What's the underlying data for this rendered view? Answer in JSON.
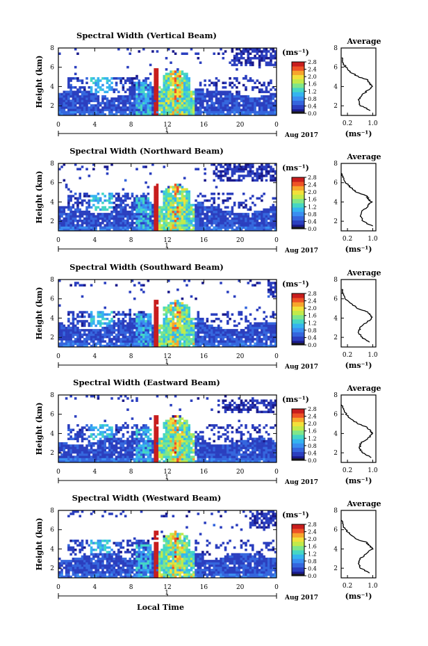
{
  "colors": {
    "colormap": [
      "#1a1a8c",
      "#2b3fbf",
      "#3566dd",
      "#3a8ef0",
      "#35b4ef",
      "#45d6c4",
      "#7ee68a",
      "#c2ea4a",
      "#f2e03a",
      "#f7a52c",
      "#ee5226",
      "#c81d1d"
    ],
    "min_color": "#1a1a1a",
    "profile_line": "#000000"
  },
  "chart_data": [
    {
      "type": "heatmap",
      "title": "Spectral Width (Vertical Beam)",
      "ylabel": "Height (km)",
      "x_ticks": [
        "0",
        "4",
        "8",
        "12",
        "16",
        "20",
        "0"
      ],
      "day_label": "1",
      "date_label": "Aug 2017",
      "y_ticks": [
        "2",
        "4",
        "6",
        "8"
      ],
      "xlim": [
        0,
        24
      ],
      "ylim": [
        1,
        8
      ],
      "colorbar": {
        "unit": "(ms⁻¹)",
        "ticks": [
          "0.0",
          "0.4",
          "0.8",
          "1.2",
          "1.6",
          "2.0",
          "2.4",
          "2.8"
        ],
        "range": [
          0,
          2.8
        ]
      },
      "profile": {
        "title": "Average",
        "xlabel": "(ms⁻¹)",
        "x_ticks": [
          "0.2",
          "1.0"
        ],
        "y_ticks": [
          "2",
          "4",
          "6",
          "8"
        ],
        "xlim": [
          0,
          1.1
        ],
        "ylim": [
          1,
          8
        ],
        "heights": [
          1.5,
          2.0,
          2.5,
          3.0,
          3.5,
          4.0,
          4.3,
          4.7,
          5.0,
          5.5,
          6.0,
          6.5,
          7.0
        ],
        "values": [
          0.95,
          0.62,
          0.55,
          0.62,
          0.8,
          0.98,
          0.9,
          0.85,
          0.55,
          0.3,
          0.15,
          0.05,
          0.02
        ]
      },
      "cloud": {
        "top": 3.3,
        "mid": 5.0,
        "aloft_start": 19,
        "aloft_top": 8.0
      }
    },
    {
      "type": "heatmap",
      "title": "Spectral Width (Northward Beam)",
      "ylabel": "Height (km)",
      "x_ticks": [
        "0",
        "4",
        "8",
        "12",
        "16",
        "20",
        "0"
      ],
      "day_label": "1",
      "date_label": "Aug 2017",
      "y_ticks": [
        "2",
        "4",
        "6",
        "8"
      ],
      "xlim": [
        0,
        24
      ],
      "ylim": [
        1,
        8
      ],
      "colorbar": {
        "unit": "(ms⁻¹)",
        "ticks": [
          "0.0",
          "0.4",
          "0.8",
          "1.2",
          "1.6",
          "2.0",
          "2.4",
          "2.8"
        ],
        "range": [
          0,
          2.8
        ]
      },
      "profile": {
        "title": "Average",
        "xlabel": "(ms⁻¹)",
        "x_ticks": [
          "0.2",
          "1.0"
        ],
        "y_ticks": [
          "2",
          "4",
          "6",
          "8"
        ],
        "xlim": [
          0,
          1.1
        ],
        "ylim": [
          1,
          8
        ],
        "heights": [
          1.5,
          2.0,
          2.5,
          3.0,
          3.5,
          4.0,
          4.3,
          4.7,
          5.0,
          5.5,
          6.0,
          6.5,
          7.0
        ],
        "values": [
          0.98,
          0.7,
          0.6,
          0.65,
          0.82,
          0.95,
          0.88,
          0.78,
          0.5,
          0.3,
          0.14,
          0.06,
          0.02
        ]
      },
      "cloud": {
        "top": 3.2,
        "mid": 5.0,
        "aloft_start": 17,
        "aloft_top": 8.0
      }
    },
    {
      "type": "heatmap",
      "title": "Spectral Width (Southward Beam)",
      "ylabel": "Height (km)",
      "x_ticks": [
        "0",
        "4",
        "8",
        "12",
        "16",
        "20",
        "0"
      ],
      "day_label": "1",
      "date_label": "Aug 2017",
      "y_ticks": [
        "2",
        "4",
        "6",
        "8"
      ],
      "xlim": [
        0,
        24
      ],
      "ylim": [
        1,
        8
      ],
      "colorbar": {
        "unit": "(ms⁻¹)",
        "ticks": [
          "0.0",
          "0.4",
          "0.8",
          "1.2",
          "1.6",
          "2.0",
          "2.4",
          "2.8"
        ],
        "range": [
          0,
          2.8
        ]
      },
      "profile": {
        "title": "Average",
        "xlabel": "(ms⁻¹)",
        "x_ticks": [
          "0.2",
          "1.0"
        ],
        "y_ticks": [
          "2",
          "4",
          "6",
          "8"
        ],
        "xlim": [
          0,
          1.1
        ],
        "ylim": [
          1,
          8
        ],
        "heights": [
          1.5,
          2.0,
          2.5,
          3.0,
          3.5,
          4.0,
          4.3,
          4.7,
          5.0,
          5.5,
          6.0,
          6.5,
          7.0
        ],
        "values": [
          0.9,
          0.65,
          0.55,
          0.6,
          0.78,
          0.98,
          0.95,
          0.8,
          0.52,
          0.32,
          0.15,
          0.06,
          0.02
        ]
      },
      "cloud": {
        "top": 3.2,
        "mid": 4.8,
        "aloft_start": 23,
        "aloft_top": 8.0
      }
    },
    {
      "type": "heatmap",
      "title": "Spectral Width (Eastward Beam)",
      "ylabel": "Height (km)",
      "x_ticks": [
        "0",
        "4",
        "8",
        "12",
        "16",
        "20",
        "0"
      ],
      "day_label": "1",
      "date_label": "Aug 2017",
      "y_ticks": [
        "2",
        "4",
        "6",
        "8"
      ],
      "xlim": [
        0,
        24
      ],
      "ylim": [
        1,
        8
      ],
      "colorbar": {
        "unit": "(ms⁻¹)",
        "ticks": [
          "0.0",
          "0.4",
          "0.8",
          "1.2",
          "1.6",
          "2.0",
          "2.4",
          "2.8"
        ],
        "range": [
          0,
          2.8
        ]
      },
      "profile": {
        "title": "Average",
        "xlabel": "(ms⁻¹)",
        "x_ticks": [
          "0.2",
          "1.0"
        ],
        "y_ticks": [
          "2",
          "4",
          "6",
          "8"
        ],
        "xlim": [
          0,
          1.1
        ],
        "ylim": [
          1,
          8
        ],
        "heights": [
          1.5,
          2.0,
          2.5,
          3.0,
          3.5,
          4.0,
          4.3,
          4.7,
          5.0,
          5.5,
          6.0,
          6.5,
          7.0
        ],
        "values": [
          0.95,
          0.68,
          0.58,
          0.62,
          0.85,
          1.0,
          0.92,
          0.8,
          0.55,
          0.3,
          0.16,
          0.06,
          0.02
        ]
      },
      "cloud": {
        "top": 3.2,
        "mid": 5.0,
        "aloft_start": 18,
        "aloft_top": 7.5
      }
    },
    {
      "type": "heatmap",
      "title": "Spectral Width (Westward Beam)",
      "ylabel": "Height (km)",
      "xlabel": "Local Time",
      "x_ticks": [
        "0",
        "4",
        "8",
        "12",
        "16",
        "20",
        "0"
      ],
      "day_label": "1",
      "date_label": "Aug 2017",
      "y_ticks": [
        "2",
        "4",
        "6",
        "8"
      ],
      "xlim": [
        0,
        24
      ],
      "ylim": [
        1,
        8
      ],
      "colorbar": {
        "unit": "(ms⁻¹)",
        "ticks": [
          "0.0",
          "0.4",
          "0.8",
          "1.2",
          "1.6",
          "2.0",
          "2.4",
          "2.8"
        ],
        "range": [
          0,
          2.8
        ]
      },
      "profile": {
        "title": "Average",
        "xlabel": "(ms⁻¹)",
        "x_ticks": [
          "0.2",
          "1.0"
        ],
        "y_ticks": [
          "2",
          "4",
          "6",
          "8"
        ],
        "xlim": [
          0,
          1.1
        ],
        "ylim": [
          1,
          8
        ],
        "heights": [
          1.5,
          2.0,
          2.5,
          3.0,
          3.5,
          4.0,
          4.3,
          4.7,
          5.0,
          5.5,
          6.0,
          6.5,
          7.0
        ],
        "values": [
          0.92,
          0.62,
          0.55,
          0.6,
          0.8,
          0.98,
          0.92,
          0.78,
          0.5,
          0.3,
          0.14,
          0.05,
          0.02
        ]
      },
      "cloud": {
        "top": 3.3,
        "mid": 5.0,
        "aloft_start": 21,
        "aloft_top": 8.0
      }
    }
  ]
}
